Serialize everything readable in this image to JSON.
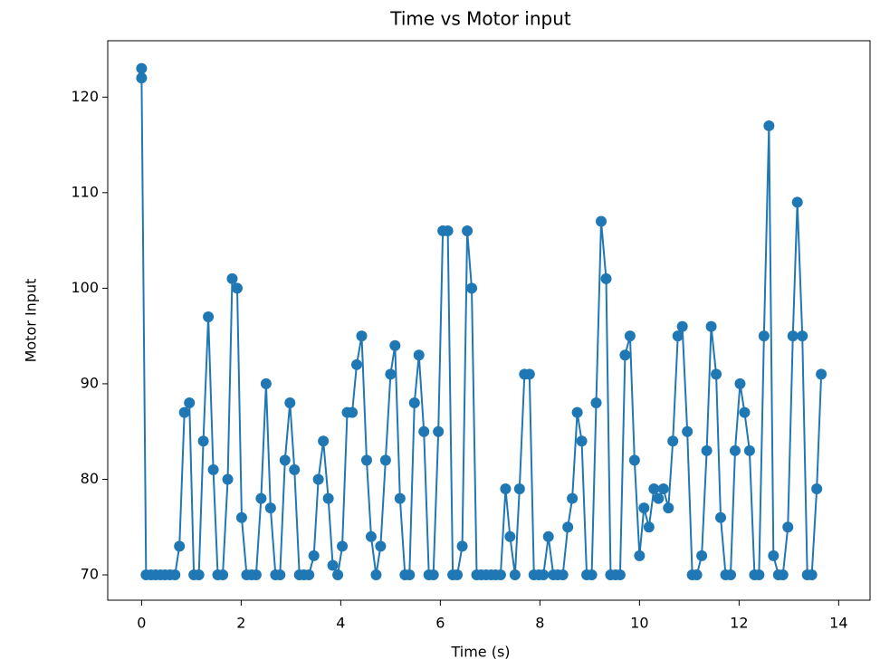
{
  "chart_data": {
    "type": "line",
    "title": "Time vs Motor input",
    "x_label": "Time (s)",
    "y_label": "Motor Input",
    "x": [
      0,
      0,
      0.09,
      0.19,
      0.28,
      0.38,
      0.47,
      0.57,
      0.67,
      0.76,
      0.86,
      0.96,
      1.05,
      1.15,
      1.24,
      1.34,
      1.44,
      1.53,
      1.63,
      1.73,
      1.82,
      1.92,
      2.01,
      2.11,
      2.21,
      2.3,
      2.4,
      2.5,
      2.59,
      2.69,
      2.78,
      2.88,
      2.98,
      3.07,
      3.17,
      3.26,
      3.36,
      3.46,
      3.55,
      3.65,
      3.75,
      3.84,
      3.94,
      4.03,
      4.13,
      4.23,
      4.32,
      4.42,
      4.52,
      4.61,
      4.71,
      4.8,
      4.9,
      5.0,
      5.09,
      5.19,
      5.29,
      5.38,
      5.48,
      5.57,
      5.67,
      5.77,
      5.86,
      5.96,
      6.05,
      6.15,
      6.25,
      6.34,
      6.44,
      6.54,
      6.63,
      6.73,
      6.82,
      6.92,
      7.02,
      7.11,
      7.21,
      7.31,
      7.4,
      7.5,
      7.59,
      7.69,
      7.79,
      7.88,
      7.98,
      8.07,
      8.17,
      8.27,
      8.36,
      8.46,
      8.56,
      8.65,
      8.75,
      8.84,
      8.94,
      9.04,
      9.13,
      9.23,
      9.33,
      9.42,
      9.52,
      9.61,
      9.71,
      9.81,
      9.9,
      10.0,
      10.09,
      10.19,
      10.29,
      10.38,
      10.48,
      10.58,
      10.67,
      10.77,
      10.86,
      10.96,
      11.06,
      11.15,
      11.25,
      11.35,
      11.44,
      11.54,
      11.63,
      11.73,
      11.83,
      11.92,
      12.02,
      12.11,
      12.21,
      12.31,
      12.4,
      12.5,
      12.6,
      12.69,
      12.79,
      12.88,
      12.98,
      13.08,
      13.17,
      13.27,
      13.37,
      13.46,
      13.56,
      13.65
    ],
    "values": [
      123,
      122,
      70,
      70,
      70,
      70,
      70,
      70,
      70,
      73,
      87,
      88,
      70,
      70,
      84,
      97,
      81,
      70,
      70,
      80,
      101,
      100,
      76,
      70,
      70,
      70,
      78,
      90,
      77,
      70,
      70,
      82,
      88,
      81,
      70,
      70,
      70,
      72,
      80,
      84,
      78,
      71,
      70,
      73,
      87,
      87,
      92,
      95,
      82,
      74,
      70,
      73,
      82,
      91,
      94,
      78,
      70,
      70,
      88,
      93,
      85,
      70,
      70,
      85,
      106,
      106,
      70,
      70,
      73,
      106,
      100,
      70,
      70,
      70,
      70,
      70,
      70,
      79,
      74,
      70,
      79,
      91,
      91,
      70,
      70,
      70,
      74,
      70,
      70,
      70,
      75,
      78,
      87,
      84,
      70,
      70,
      88,
      107,
      101,
      70,
      70,
      70,
      93,
      95,
      82,
      72,
      77,
      75,
      79,
      78,
      79,
      77,
      84,
      95,
      96,
      85,
      70,
      70,
      72,
      83,
      96,
      91,
      76,
      70,
      70,
      83,
      90,
      87,
      83,
      70,
      70,
      95,
      117,
      72,
      70,
      70,
      75,
      95,
      109,
      95,
      70,
      70,
      79,
      91
    ],
    "color": "#1f77b4",
    "xlim": [
      -0.68,
      14.63
    ],
    "ylim": [
      67.35,
      125.9
    ],
    "xticks": [
      0,
      2,
      4,
      6,
      8,
      10,
      12,
      14
    ],
    "yticks": [
      70,
      80,
      90,
      100,
      110,
      120
    ]
  }
}
